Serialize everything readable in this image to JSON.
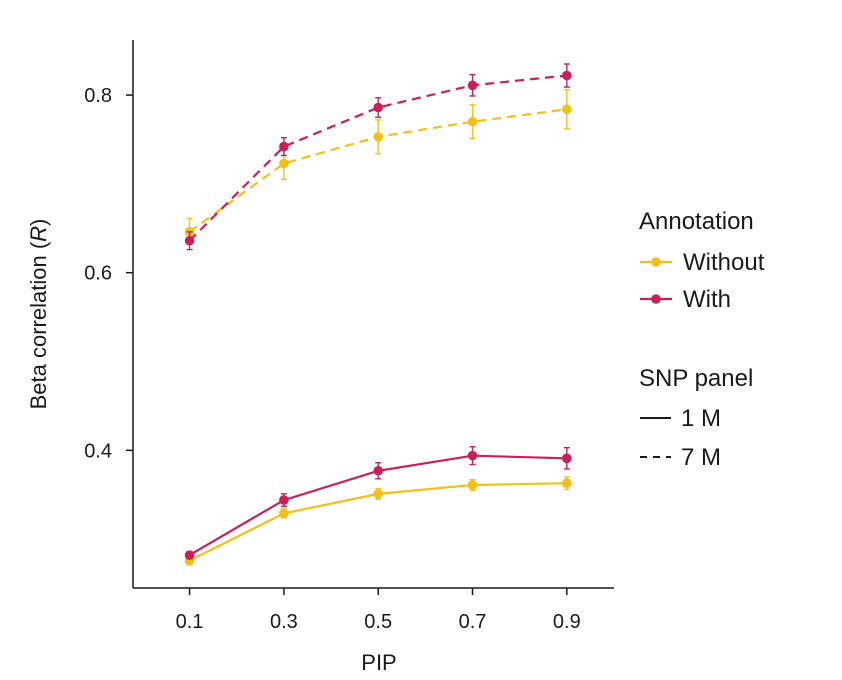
{
  "chart_data": {
    "type": "line",
    "xlabel": "PIP",
    "ylabel_main": "Beta correlation (",
    "ylabel_italic": "R",
    "ylabel_end": ")",
    "x": [
      0.1,
      0.3,
      0.5,
      0.7,
      0.9
    ],
    "x_tick_labels": [
      "0.1",
      "0.3",
      "0.5",
      "0.7",
      "0.9"
    ],
    "y_ticks": [
      0.4,
      0.6,
      0.8
    ],
    "y_tick_labels": [
      "0.4",
      "0.6",
      "0.8"
    ],
    "xlim": [
      -0.02,
      1.0
    ],
    "ylim": [
      0.245,
      0.862
    ],
    "grid": false,
    "colors": {
      "without": "#f5c016",
      "with": "#cc1f5a"
    },
    "series": [
      {
        "annotation": "without",
        "panel": "1M",
        "dash": false,
        "values": [
          0.276,
          0.329,
          0.351,
          0.361,
          0.363
        ],
        "err_lo": [
          0.005,
          0.005,
          0.006,
          0.006,
          0.007
        ],
        "err_hi": [
          0.005,
          0.005,
          0.006,
          0.006,
          0.007
        ]
      },
      {
        "annotation": "with",
        "panel": "1M",
        "dash": false,
        "values": [
          0.282,
          0.344,
          0.377,
          0.394,
          0.391
        ],
        "err_lo": [
          0.004,
          0.007,
          0.009,
          0.01,
          0.012
        ],
        "err_hi": [
          0.004,
          0.007,
          0.009,
          0.01,
          0.012
        ]
      },
      {
        "annotation": "without",
        "panel": "7M",
        "dash": true,
        "values": [
          0.646,
          0.723,
          0.753,
          0.77,
          0.784
        ],
        "err_lo": [
          0.012,
          0.018,
          0.019,
          0.019,
          0.022
        ],
        "err_hi": [
          0.015,
          0.018,
          0.019,
          0.019,
          0.022
        ]
      },
      {
        "annotation": "with",
        "panel": "7M",
        "dash": true,
        "values": [
          0.636,
          0.742,
          0.786,
          0.811,
          0.822
        ],
        "err_lo": [
          0.01,
          0.01,
          0.011,
          0.012,
          0.013
        ],
        "err_hi": [
          0.01,
          0.01,
          0.011,
          0.012,
          0.013
        ]
      }
    ],
    "legend": {
      "position": "right",
      "annotation_title": "Annotation",
      "annotation_entries": [
        "Without",
        "With"
      ],
      "panel_title": "SNP panel",
      "panel_entries": [
        "1 M",
        "7 M"
      ]
    }
  }
}
